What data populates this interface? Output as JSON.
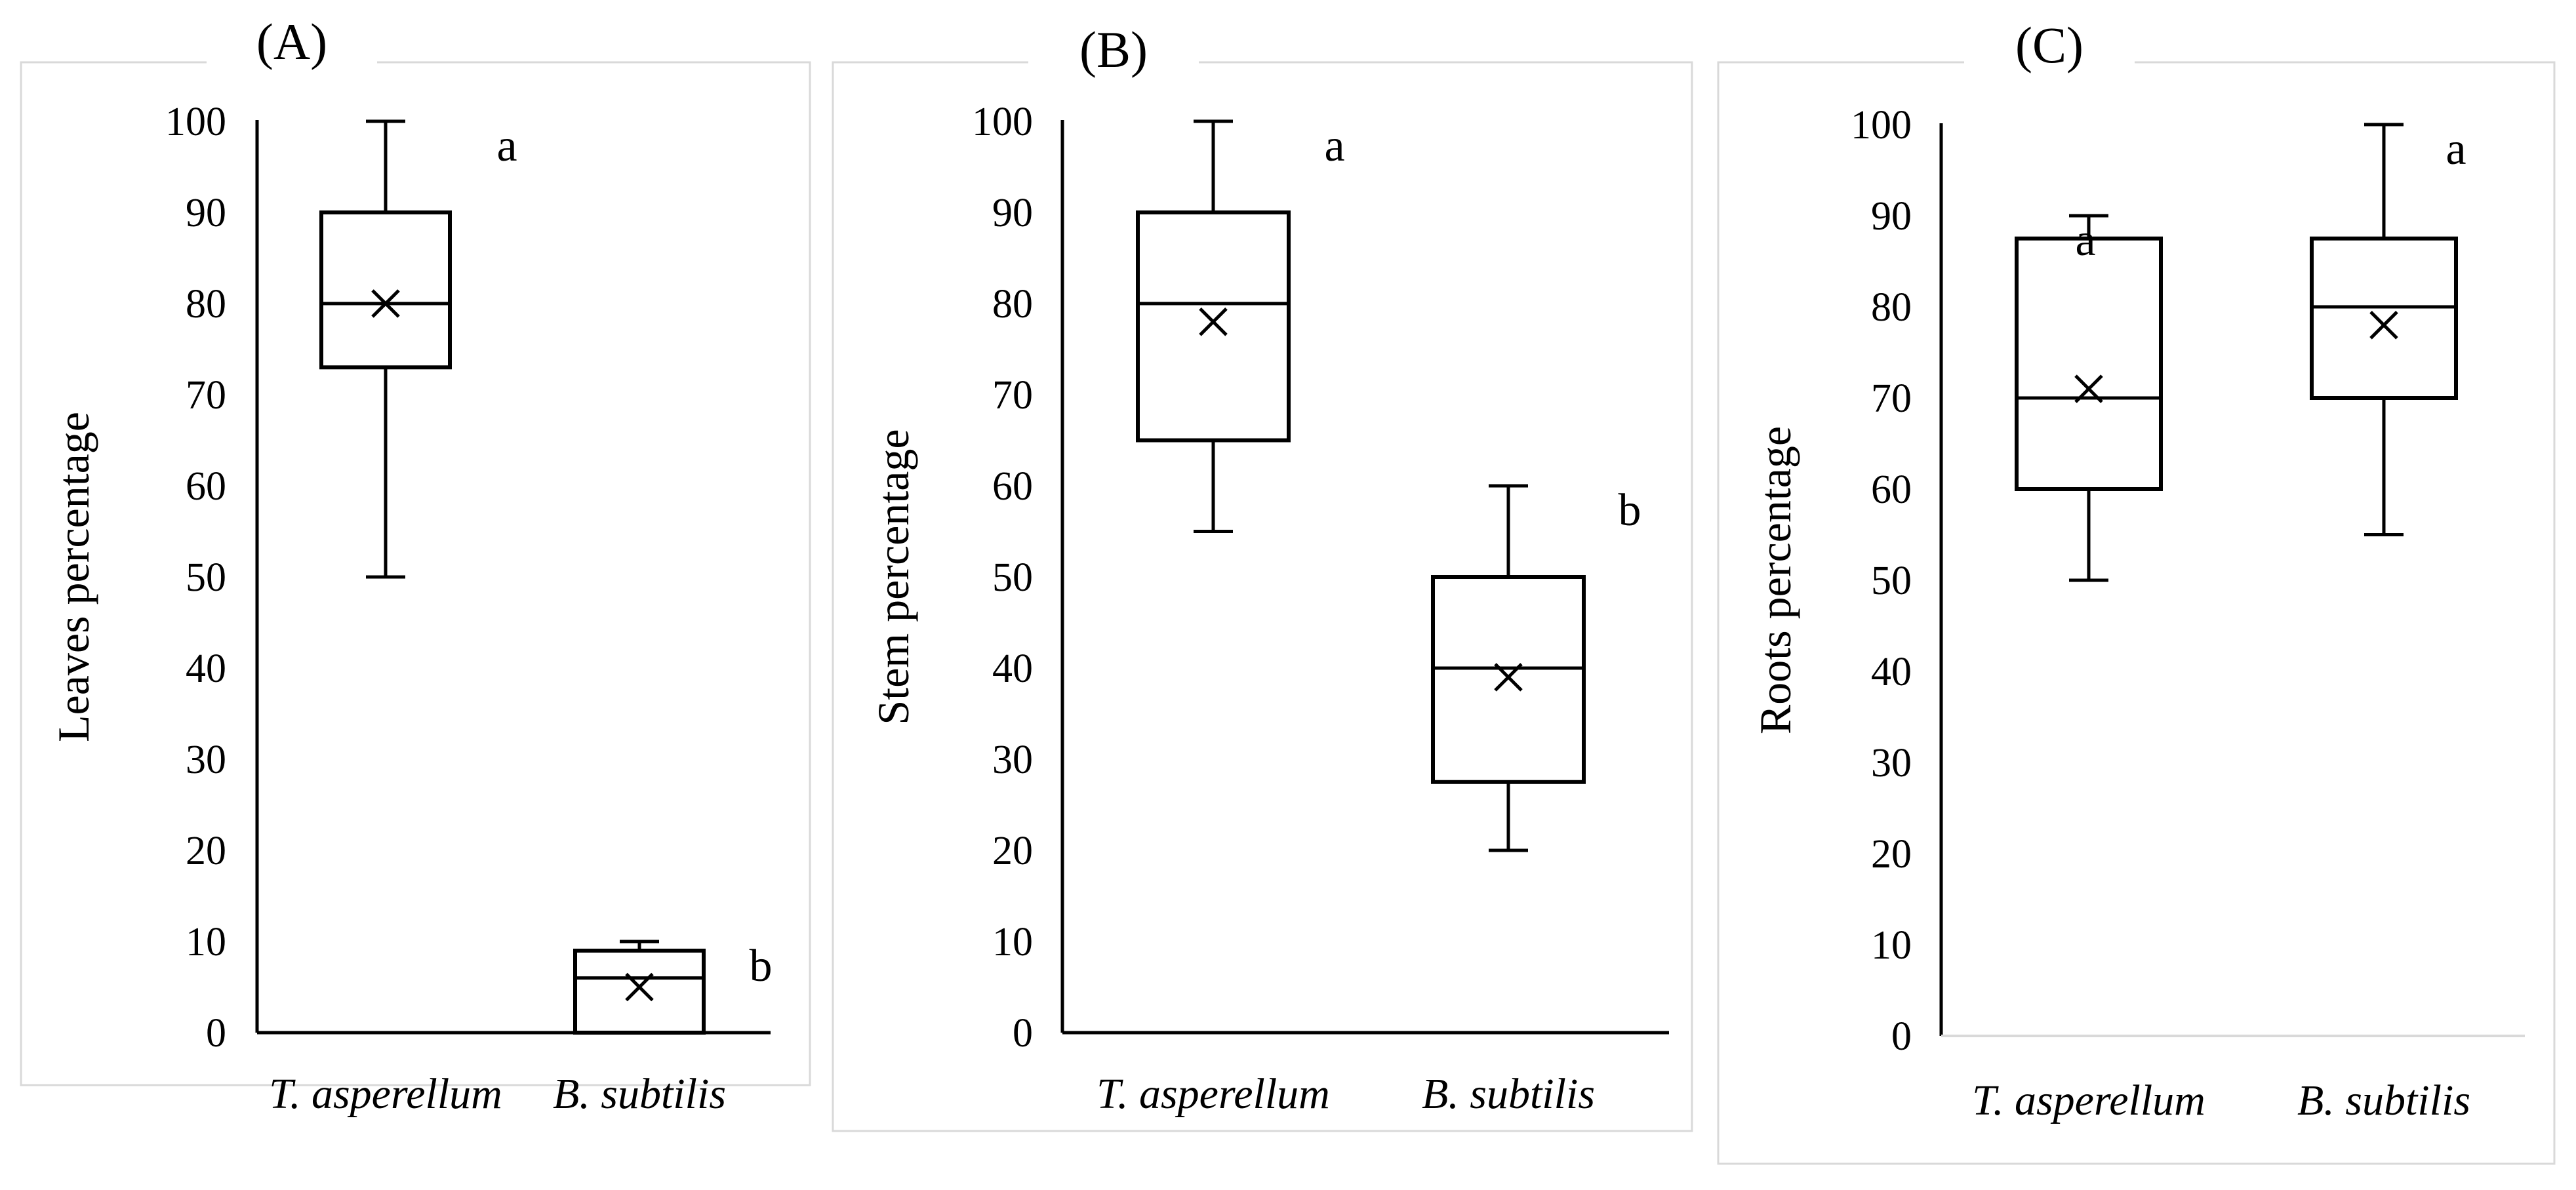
{
  "chart_data": [
    {
      "type": "box",
      "panel_label": "(A)",
      "ylabel": "Leaves percentage",
      "ylim": [
        0,
        100
      ],
      "yticks": [
        "0",
        "10",
        "20",
        "30",
        "40",
        "50",
        "60",
        "70",
        "80",
        "90",
        "100"
      ],
      "categories": [
        "T. asperellum",
        "B. subtilis"
      ],
      "boxes": [
        {
          "category": "T. asperellum",
          "min": 50,
          "q1": 73,
          "median": 80,
          "q3": 90,
          "max": 100,
          "mean": 80,
          "sig": "a"
        },
        {
          "category": "B. subtilis",
          "min": 0,
          "q1": 0,
          "median": 6,
          "q3": 9,
          "max": 10,
          "mean": 5,
          "sig": "b"
        }
      ]
    },
    {
      "type": "box",
      "panel_label": "(B)",
      "ylabel": "Stem percentage",
      "ylim": [
        0,
        100
      ],
      "yticks": [
        "0",
        "10",
        "20",
        "30",
        "40",
        "50",
        "60",
        "70",
        "80",
        "90",
        "100"
      ],
      "categories": [
        "T. asperellum",
        "B. subtilis"
      ],
      "boxes": [
        {
          "category": "T. asperellum",
          "min": 55,
          "q1": 65,
          "median": 80,
          "q3": 90,
          "max": 100,
          "mean": 78,
          "sig": "a"
        },
        {
          "category": "B. subtilis",
          "min": 20,
          "q1": 27.5,
          "median": 40,
          "q3": 50,
          "max": 60,
          "mean": 39,
          "sig": "b"
        }
      ]
    },
    {
      "type": "box",
      "panel_label": "(C)",
      "ylabel": "Roots percentage",
      "ylim": [
        0,
        100
      ],
      "yticks": [
        "0",
        "10",
        "20",
        "30",
        "40",
        "50",
        "60",
        "70",
        "80",
        "90",
        "100"
      ],
      "categories": [
        "T. asperellum",
        "B. subtilis"
      ],
      "boxes": [
        {
          "category": "T. asperellum",
          "min": 50,
          "q1": 60,
          "median": 70,
          "q3": 87.5,
          "max": 90,
          "mean": 71,
          "sig": "a"
        },
        {
          "category": "B. subtilis",
          "min": 55,
          "q1": 70,
          "median": 80,
          "q3": 87.5,
          "max": 100,
          "mean": 78,
          "sig": "a"
        }
      ]
    }
  ]
}
